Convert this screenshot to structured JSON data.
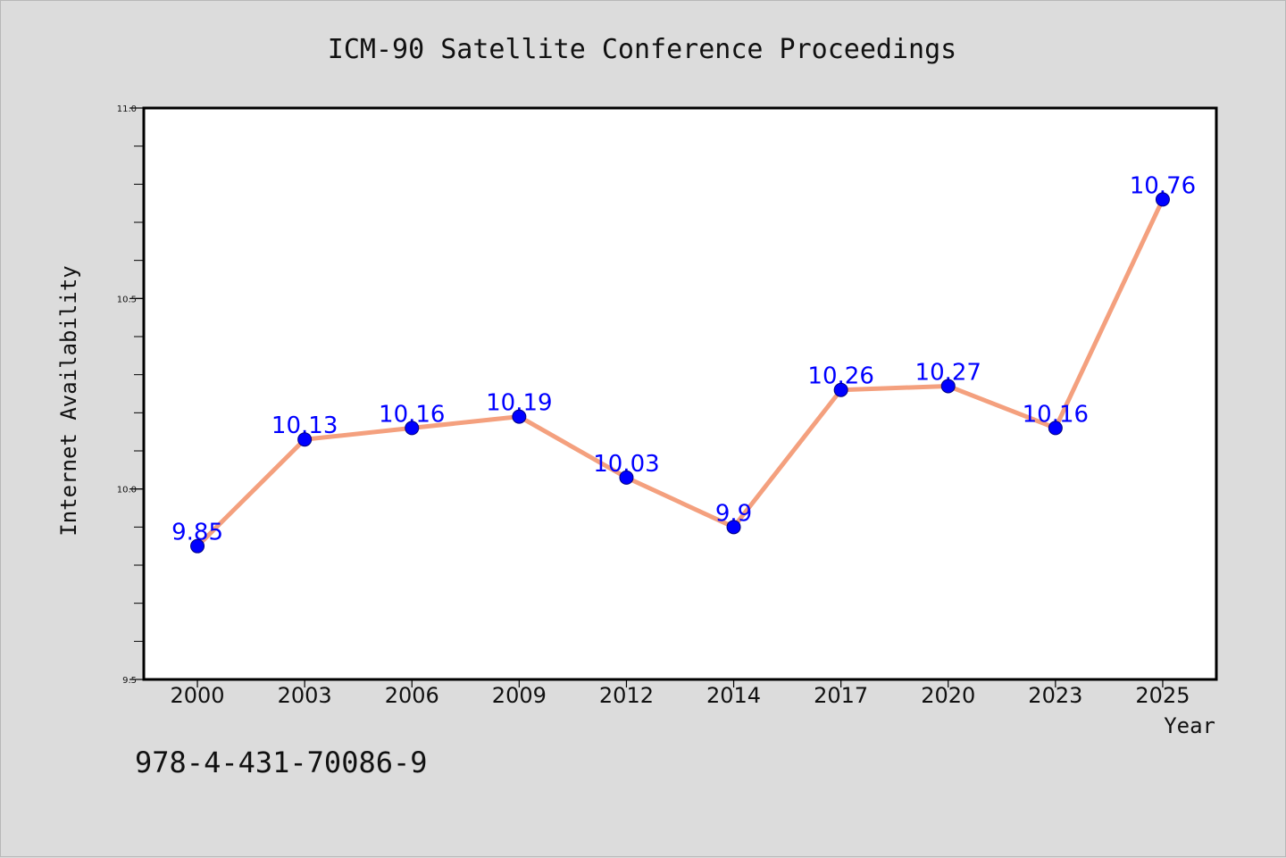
{
  "colors": {
    "background": "#dcdcdc",
    "plot_background": "#ffffff",
    "line": "#f4a07e",
    "marker": "#0000ff",
    "data_label": "#0000ff",
    "text": "#111111"
  },
  "footer": {
    "isbn": "978-4-431-70086-9"
  },
  "chart_data": {
    "type": "line",
    "title": "ICM-90 Satellite Conference Proceedings",
    "xlabel": "Year",
    "ylabel": "Internet Availability",
    "categories": [
      "2000",
      "2003",
      "2006",
      "2009",
      "2012",
      "2014",
      "2017",
      "2020",
      "2023",
      "2025"
    ],
    "series": [
      {
        "values": [
          9.85,
          10.13,
          10.16,
          10.19,
          10.03,
          9.9,
          10.26,
          10.27,
          10.16,
          10.76
        ],
        "labels": [
          "9.85",
          "10.13",
          "10.16",
          "10.19",
          "10.03",
          "9.9",
          "10.26",
          "10.27",
          "10.16",
          "10.76"
        ]
      }
    ],
    "ylim": [
      9.5,
      11.0
    ],
    "yticks": [
      "9.5",
      "10.0",
      "10.5",
      "11.0"
    ],
    "yticks_values": [
      9.5,
      10.0,
      10.5,
      11.0
    ],
    "minor_tick_step": 0.1,
    "grid": false,
    "legend": "none",
    "data_labels": true
  }
}
